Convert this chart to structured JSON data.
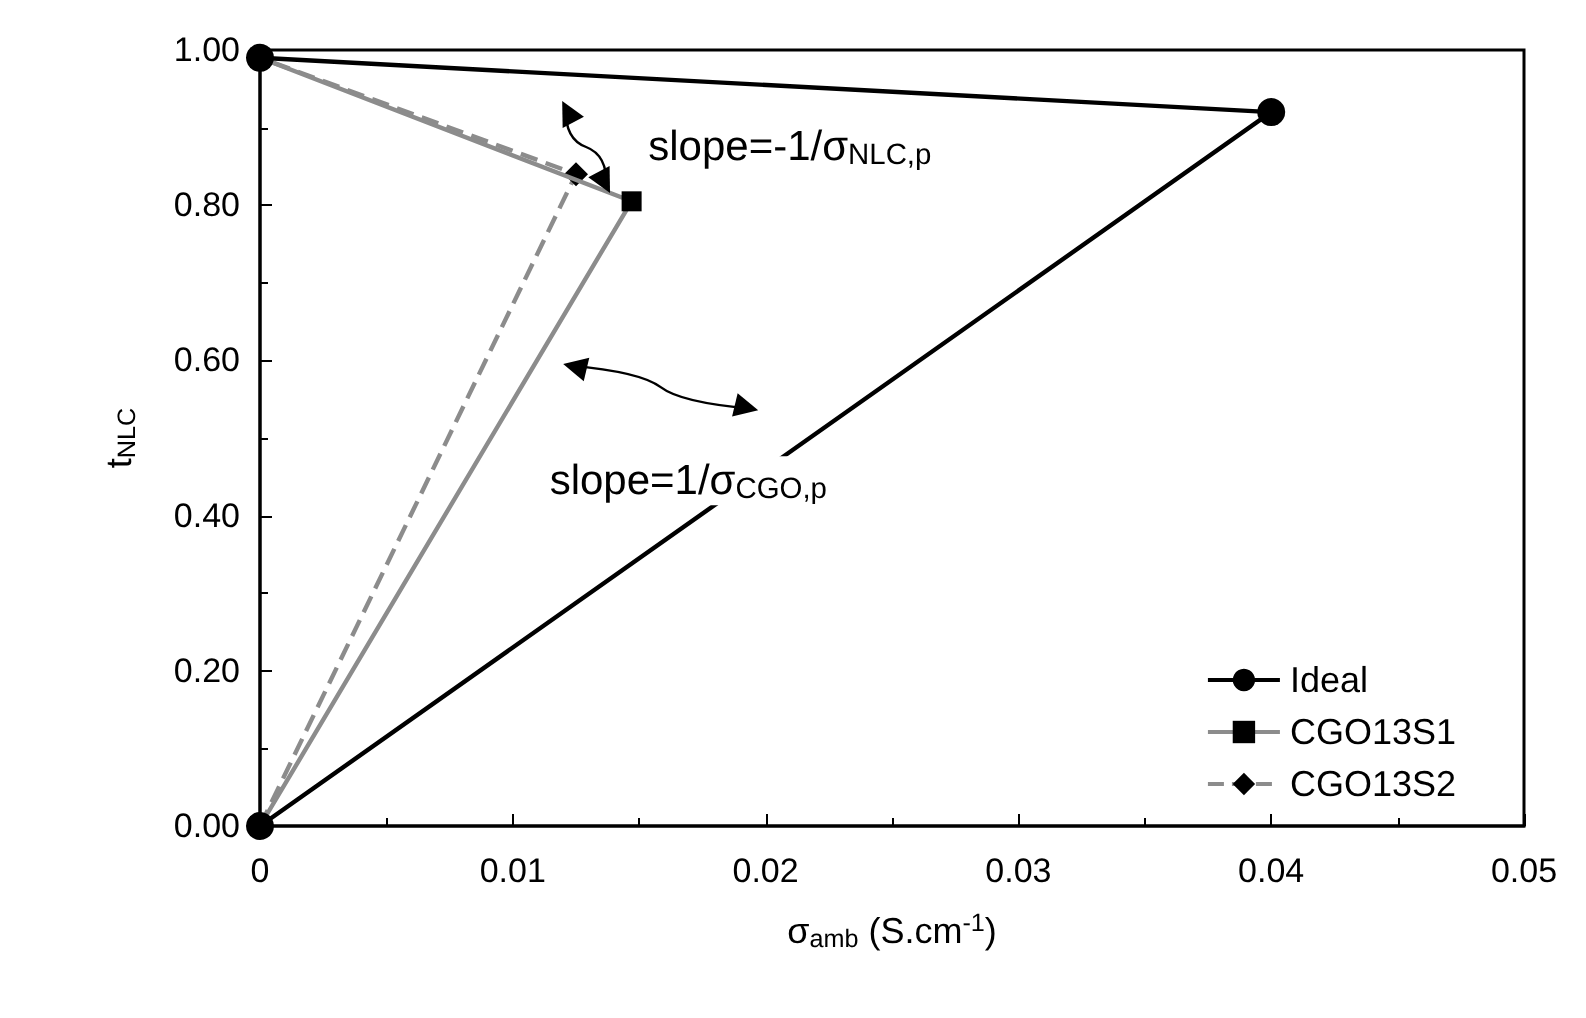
{
  "chart_data": {
    "type": "line",
    "xlabel": "σ$_{amb}$ (S.cm$^{-1}$)",
    "ylabel": "t$_{NLC}$",
    "series": [
      {
        "name": "Ideal",
        "color": "#000000",
        "marker": "circle",
        "line_style": "solid",
        "x": [
          0,
          0.04,
          0
        ],
        "values": [
          0,
          0.92,
          0.99
        ]
      },
      {
        "name": "CGO13S1",
        "color": "#8c8c8c",
        "marker": "square",
        "line_style": "solid",
        "x": [
          0,
          0.0147,
          0
        ],
        "values": [
          0,
          0.805,
          0.99
        ]
      },
      {
        "name": "CGO13S2",
        "color": "#8c8c8c",
        "marker": "diamond",
        "line_style": "dashed",
        "x": [
          0,
          0.0125,
          0
        ],
        "values": [
          0,
          0.84,
          0.99
        ]
      }
    ],
    "xlim": [
      0,
      0.05
    ],
    "xticks": [
      0,
      0.01,
      0.02,
      0.03,
      0.04,
      0.05
    ],
    "ylim": [
      0,
      1
    ],
    "yticks": [
      {
        "value": 0,
        "label": "0.00"
      },
      {
        "value": 0.2,
        "label": "0.20"
      },
      {
        "value": 0.4,
        "label": "0.40"
      },
      {
        "value": 0.6,
        "label": "0.60"
      },
      {
        "value": 0.8,
        "label": "0.80"
      },
      {
        "value": 1,
        "label": "1.00"
      }
    ],
    "annotations": [
      "slope=-1/σ$_{NLC,p}$",
      "slope=1/σ$_{CGO,p}$"
    ],
    "grid": false,
    "legend": "bottom right"
  }
}
